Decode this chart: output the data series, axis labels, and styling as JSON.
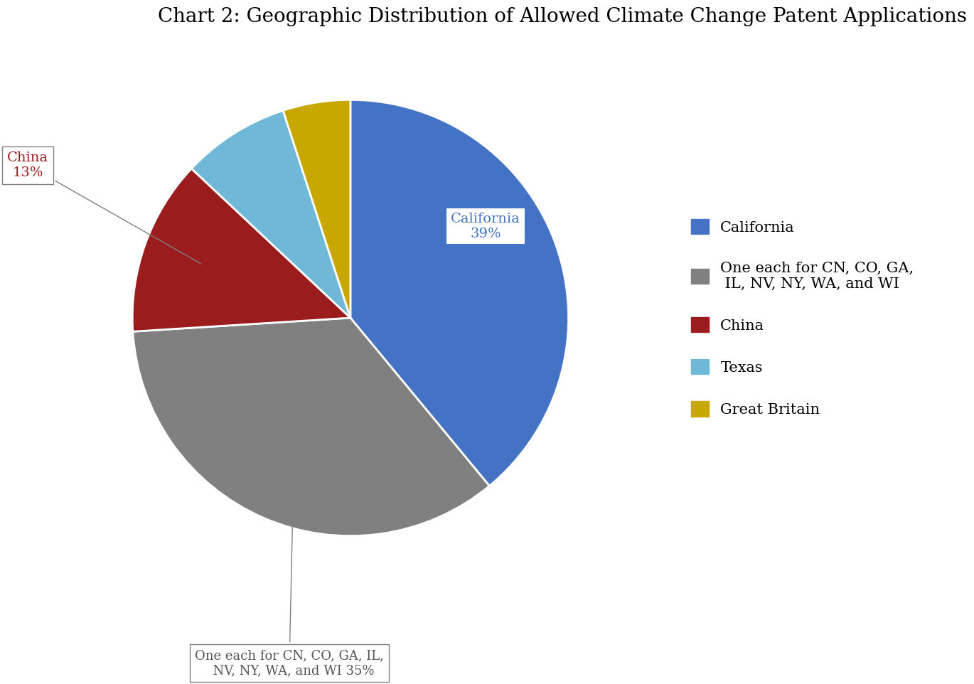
{
  "title": "Chart 2: Geographic Distribution of Allowed Climate Change Patent Applications",
  "title_fontsize": 20,
  "slices": [
    {
      "label": "California",
      "pct": 39,
      "color": "#4472C4"
    },
    {
      "label": "One each for CN, CO, GA,\nIL, NV, NY, WA, and WI",
      "pct": 35,
      "color": "#808080"
    },
    {
      "label": "China",
      "pct": 13,
      "color": "#9B1C1C"
    },
    {
      "label": "Texas",
      "pct": 8,
      "color": "#70B8D8"
    },
    {
      "label": "Great Britain",
      "pct": 5,
      "color": "#C8A800"
    }
  ],
  "legend_labels": [
    "California",
    "One each for CN, CO, GA,\n IL, NV, NY, WA, and WI",
    "China",
    "Texas",
    "Great Britain"
  ],
  "legend_colors": [
    "#4472C4",
    "#808080",
    "#9B1C1C",
    "#70B8D8",
    "#C8A800"
  ],
  "background_color": "#FFFFFF",
  "startangle": 90,
  "counterclock": false
}
